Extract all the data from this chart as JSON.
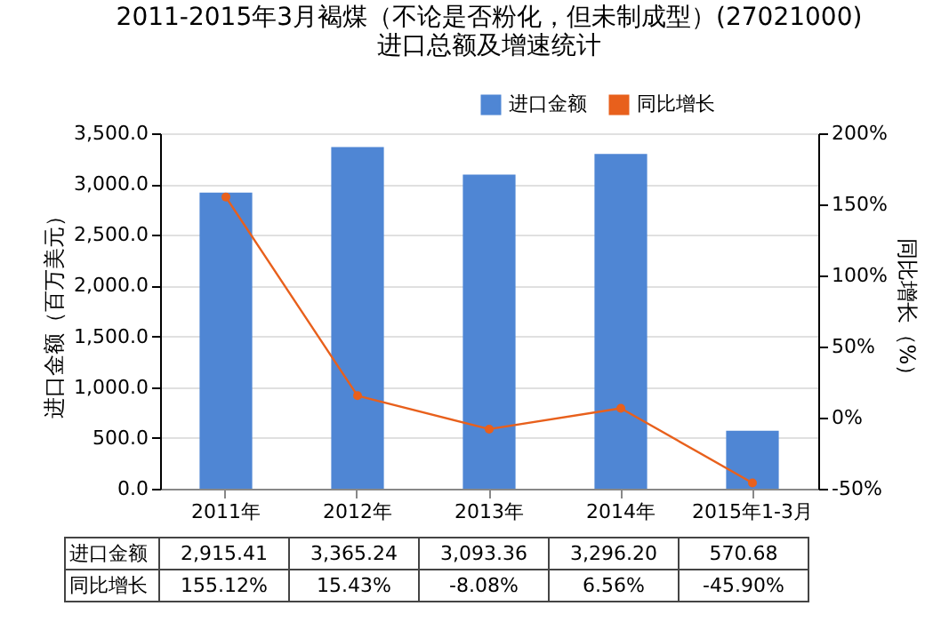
{
  "chart_data": {
    "type": "bar",
    "title": "2011-2015年3月褐煤（不论是否粉化，但未制成型）(27021000)\n进口总额及增速统计",
    "xlabel": null,
    "ylabel": "进口金额（百万美元）",
    "y2label": "同比增长（%）",
    "categories": [
      "2011年",
      "2012年",
      "2013年",
      "2014年",
      "2015年1-3月"
    ],
    "series": [
      {
        "name": "进口金额",
        "color": "#4f86d4",
        "values": [
          2915.41,
          3365.24,
          3093.36,
          3296.2,
          570.68
        ],
        "value_labels": [
          "2,915.41",
          "3,365.24",
          "3,093.36",
          "3,296.20",
          "570.68"
        ]
      },
      {
        "name": "同比增长",
        "type": "line",
        "axis": "y2",
        "color": "#e8601c",
        "values": [
          155.12,
          15.43,
          -8.08,
          6.56,
          -45.9
        ],
        "value_labels": [
          "155.12%",
          "15.43%",
          "-8.08%",
          "6.56%",
          "-45.90%"
        ]
      }
    ],
    "ylim": [
      0,
      3500
    ],
    "yticks": [
      {
        "value": 0,
        "label": "0.0"
      },
      {
        "value": 500,
        "label": "500.0"
      },
      {
        "value": 1000,
        "label": "1,000.0"
      },
      {
        "value": 1500,
        "label": "1,500.0"
      },
      {
        "value": 2000,
        "label": "2,000.0"
      },
      {
        "value": 2500,
        "label": "2,500.0"
      },
      {
        "value": 3000,
        "label": "3,000.0"
      },
      {
        "value": 3500,
        "label": "3,500.0"
      }
    ],
    "y2lim": [
      -50,
      200
    ],
    "y2ticks": [
      {
        "value": -50,
        "label": "-50%"
      },
      {
        "value": 0,
        "label": "0%"
      },
      {
        "value": 50,
        "label": "50%"
      },
      {
        "value": 100,
        "label": "100%"
      },
      {
        "value": 150,
        "label": "150%"
      },
      {
        "value": 200,
        "label": "200%"
      }
    ],
    "grid": "y",
    "legend": "top right",
    "marker": "circle",
    "line_style": "solid"
  }
}
